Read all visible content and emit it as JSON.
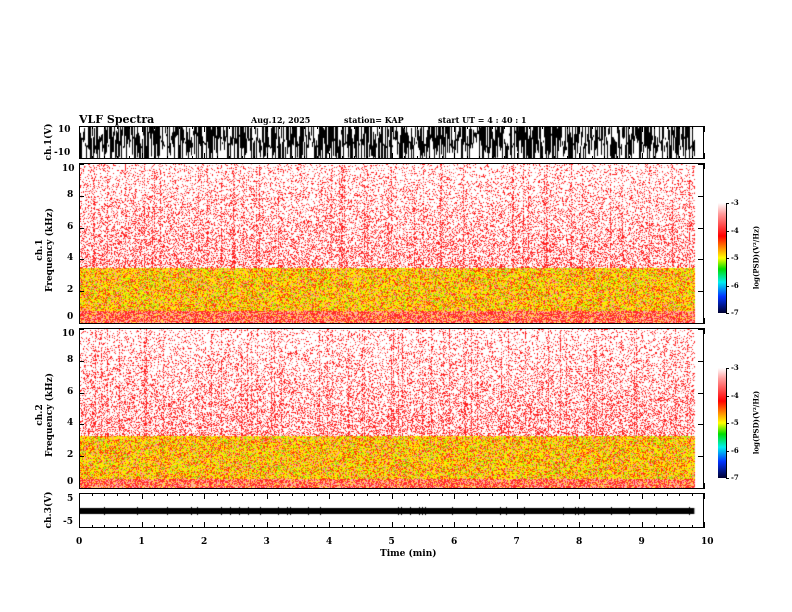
{
  "header": {
    "title": "VLF Spectra",
    "date": "Aug.12, 2025",
    "station": "station= KAP",
    "start": "start  UT =   4 : 40 : 1"
  },
  "chart_data": {
    "type": "heatmap",
    "xlabel": "Time (min)",
    "xlim": [
      0,
      10
    ],
    "xticks": [
      "0",
      "1",
      "2",
      "3",
      "4",
      "5",
      "6",
      "7",
      "8",
      "9",
      "10"
    ],
    "data_end_min": 9.83,
    "panels": [
      {
        "name": "ch1-waveform",
        "ylabel": "ch.1(V)",
        "ylim": [
          -10,
          10
        ],
        "yticks": [
          "10",
          "-10"
        ]
      },
      {
        "name": "ch1-spectrogram",
        "ylabel": "ch.1\nFrequency (kHz)",
        "ylabel_top": "ch.1",
        "ylabel_bottom": "Frequency (kHz)",
        "ylim": [
          0,
          10
        ],
        "yticks": [
          "0",
          "2",
          "4",
          "6",
          "8",
          "10"
        ],
        "band_khz": [
          0.8,
          3.5
        ]
      },
      {
        "name": "ch2-spectrogram",
        "ylabel_top": "ch.2",
        "ylabel_bottom": "Frequency (kHz)",
        "ylim": [
          0,
          10
        ],
        "yticks": [
          "0",
          "2",
          "4",
          "6",
          "8",
          "10"
        ],
        "band_khz": [
          0.6,
          3.3
        ]
      },
      {
        "name": "ch3-waveform",
        "ylabel": "ch.3(V)",
        "ylim": [
          -5,
          5
        ],
        "yticks": [
          "5",
          "-5"
        ],
        "level_v": 0
      }
    ],
    "colorbar": {
      "label": "log(PSD)(V²/Hz)",
      "range": [
        -7,
        -3
      ],
      "ticks": [
        "-3",
        "-4",
        "-5",
        "-6",
        "-7"
      ]
    }
  }
}
